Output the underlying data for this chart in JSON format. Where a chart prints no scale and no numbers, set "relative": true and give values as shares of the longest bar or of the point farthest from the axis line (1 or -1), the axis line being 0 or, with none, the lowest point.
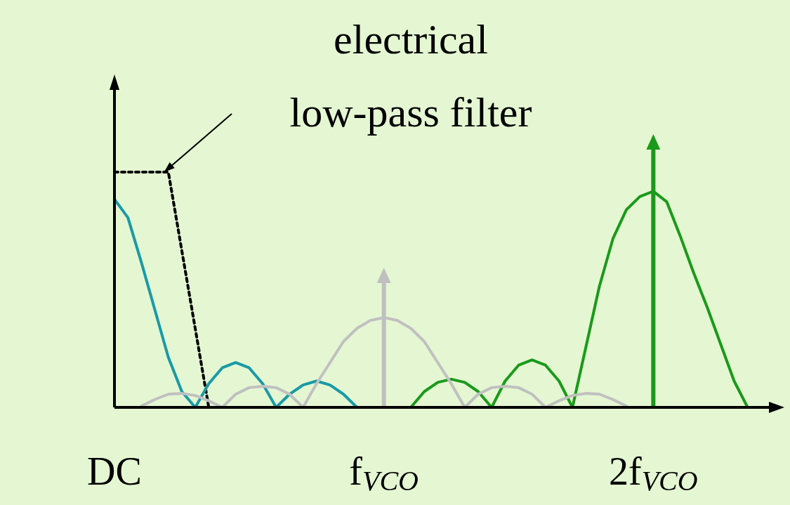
{
  "chart_data": {
    "type": "line",
    "relative": true,
    "legend": false,
    "categories": [
      "DC",
      null,
      null,
      null,
      null,
      null,
      null,
      null,
      null,
      null,
      null,
      null,
      null,
      null,
      null,
      null,
      null,
      null,
      null,
      null,
      "f$_{VCO}$",
      null,
      null,
      null,
      null,
      null,
      null,
      null,
      null,
      null,
      null,
      null,
      null,
      null,
      null,
      null,
      null,
      null,
      null,
      null,
      "2f$_{VCO}$",
      null,
      null,
      null,
      null,
      null,
      null,
      null,
      null,
      null
    ],
    "annotations": [
      "electrical\nlow-pass filter"
    ],
    "series": [
      {
        "color": "#c0c0c0",
        "values": [
          null,
          null,
          0.005,
          0.03,
          0.05,
          0.053,
          0.045,
          0.025,
          0,
          0.05,
          0.075,
          0.08,
          0.075,
          0.05,
          0,
          0.09,
          0.17,
          0.25,
          0.3,
          0.33,
          0.341,
          0.33,
          0.3,
          0.25,
          0.17,
          0.09,
          0,
          0.05,
          0.075,
          0.08,
          0.075,
          0.05,
          0,
          0.025,
          0.045,
          0.053,
          0.05,
          0.03,
          0.005,
          null,
          null,
          null,
          null,
          null,
          null,
          null,
          null,
          null,
          null,
          null
        ]
      },
      {
        "color": "#1a9aa6",
        "values": [
          0.79,
          0.72,
          0.55,
          0.37,
          0.19,
          0.06,
          0,
          0.09,
          0.15,
          0.17,
          0.15,
          0.09,
          0,
          0.05,
          0.085,
          0.1,
          0.085,
          0.05,
          0,
          null,
          null,
          null,
          null,
          null,
          null,
          null,
          null,
          null,
          null,
          null,
          null,
          null,
          null,
          null,
          null,
          null,
          null,
          null,
          null,
          null,
          null,
          null,
          null,
          null,
          null,
          null,
          null,
          null,
          null,
          null
        ]
      },
      {
        "color": "#1a9a1a",
        "values": [
          null,
          null,
          null,
          null,
          null,
          null,
          null,
          null,
          null,
          null,
          null,
          null,
          null,
          null,
          null,
          null,
          null,
          null,
          null,
          null,
          null,
          null,
          0,
          0.06,
          0.095,
          0.107,
          0.095,
          0.06,
          0,
          0.1,
          0.16,
          0.18,
          0.16,
          0.1,
          0,
          0.23,
          0.46,
          0.64,
          0.75,
          0.8,
          0.82,
          0.78,
          0.65,
          0.51,
          0.38,
          0.24,
          0.1,
          0,
          null,
          null
        ]
      },
      {
        "type": "lollipop",
        "marker": "triangle",
        "color": "#c0c0c0",
        "values": [
          null,
          null,
          null,
          null,
          null,
          null,
          null,
          null,
          null,
          null,
          null,
          null,
          null,
          null,
          null,
          null,
          null,
          null,
          null,
          null,
          0.493,
          null,
          null,
          null,
          null,
          null,
          null,
          null,
          null,
          null,
          null,
          null,
          null,
          null,
          null,
          null,
          null,
          null,
          null,
          null,
          null,
          null,
          null,
          null,
          null,
          null,
          null,
          null,
          null,
          null
        ]
      },
      {
        "type": "lollipop",
        "marker": "triangle",
        "color": "#1a9a1a",
        "values": [
          null,
          null,
          null,
          null,
          null,
          null,
          null,
          null,
          null,
          null,
          null,
          null,
          null,
          null,
          null,
          null,
          null,
          null,
          null,
          null,
          null,
          null,
          null,
          null,
          null,
          null,
          null,
          null,
          null,
          null,
          null,
          null,
          null,
          null,
          null,
          null,
          null,
          null,
          null,
          null,
          1,
          null,
          null,
          null,
          null,
          null,
          null,
          null,
          null,
          null
        ]
      },
      {
        "color": "#000000",
        "line_style": "dotted",
        "values": [
          0.893,
          0.893,
          0.893,
          0.893,
          0.893,
          0.595,
          0.298,
          0,
          null,
          null,
          null,
          null,
          null,
          null,
          null,
          null,
          null,
          null,
          null,
          null,
          null,
          null,
          null,
          null,
          null,
          null,
          null,
          null,
          null,
          null,
          null,
          null,
          null,
          null,
          null,
          null,
          null,
          null,
          null,
          null,
          null,
          null,
          null,
          null,
          null,
          null,
          null,
          null,
          null,
          null
        ]
      }
    ]
  }
}
